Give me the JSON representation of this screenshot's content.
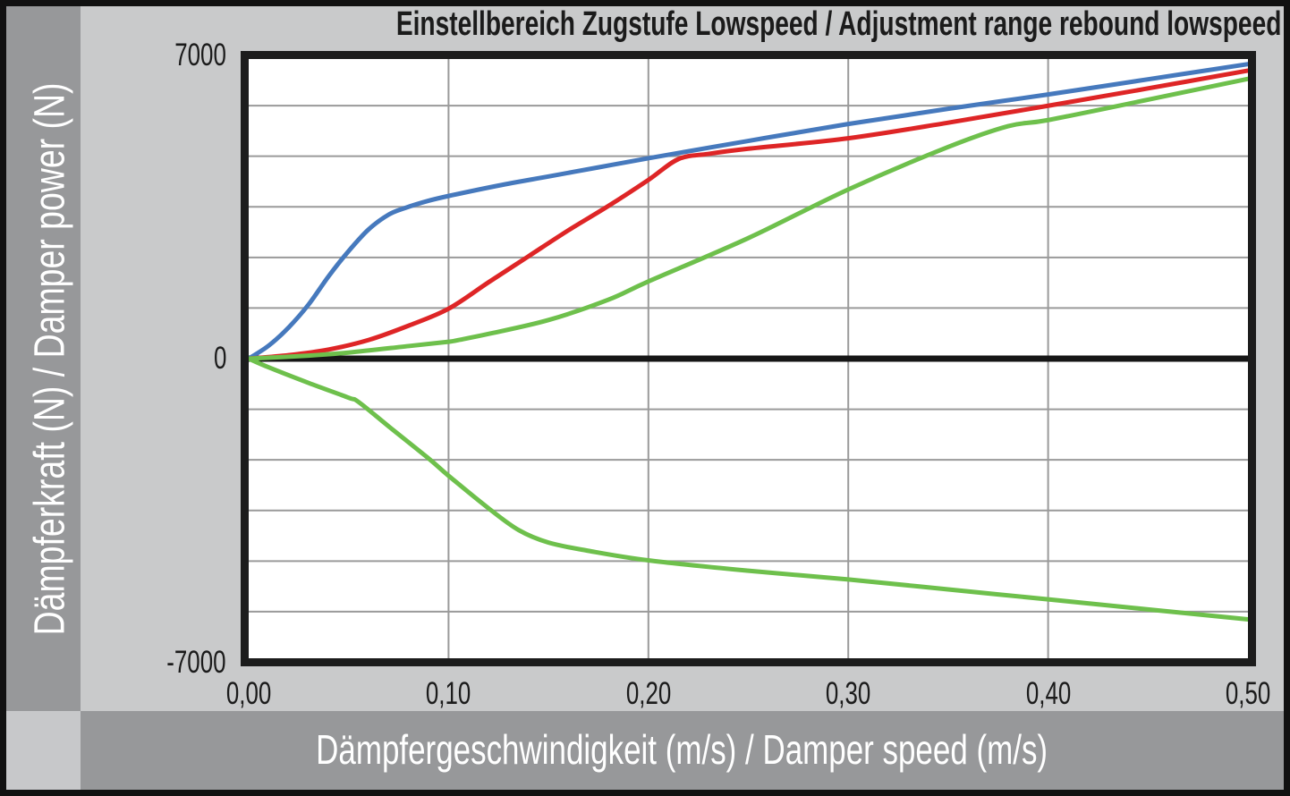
{
  "page": {
    "title": "Einstellbereich Zugstufe Lowspeed / Adjustment range rebound lowspeed",
    "x_axis_band_label": "Dämpfergeschwindigkeit (m/s) / Damper speed (m/s)",
    "y_axis_band_label": "Dämpferkraft (N) / Damper power (N)"
  },
  "colors": {
    "band_gray": "#97989a",
    "panel_gray": "#c9cacb",
    "corner_gray": "#c7c8ca",
    "grid_gray": "#9a9a9a",
    "frame_black": "#1c1c1c",
    "zero_line_black": "#161616",
    "series_blue": "#4679bd",
    "series_red": "#de2526",
    "series_green": "#6ec04c"
  },
  "chart_data": {
    "type": "line",
    "title": "Einstellbereich Zugstufe Lowspeed / Adjustment range rebound lowspeed",
    "xlabel": "Dämpfergeschwindigkeit (m/s) / Damper speed (m/s)",
    "ylabel": "Dämpferkraft (N) / Damper power (N)",
    "xlim": [
      0,
      0.5
    ],
    "ylim": [
      -7000,
      7000
    ],
    "grid": true,
    "legend": false,
    "x_tick_values": [
      0,
      0.1,
      0.2,
      0.3,
      0.4,
      0.5
    ],
    "x_tick_labels": [
      "0,00",
      "0,10",
      "0,20",
      "0,30",
      "0,40",
      "0,50"
    ],
    "y_tick_values": [
      7000,
      0,
      -7000
    ],
    "y_tick_labels": [
      "7000",
      "0",
      "-7000"
    ],
    "x_gridline_values": [
      0.1,
      0.2,
      0.3,
      0.4
    ],
    "y_gridlines_per_half": 6,
    "series": [
      {
        "name": "blue-curve-rebound-max",
        "color": "#4679bd",
        "points": [
          [
            0,
            0
          ],
          [
            0.01,
            300
          ],
          [
            0.02,
            720
          ],
          [
            0.03,
            1250
          ],
          [
            0.04,
            1900
          ],
          [
            0.05,
            2480
          ],
          [
            0.06,
            2980
          ],
          [
            0.07,
            3320
          ],
          [
            0.078,
            3470
          ],
          [
            0.09,
            3640
          ],
          [
            0.1,
            3750
          ],
          [
            0.125,
            3990
          ],
          [
            0.15,
            4200
          ],
          [
            0.175,
            4410
          ],
          [
            0.2,
            4620
          ],
          [
            0.25,
            5020
          ],
          [
            0.3,
            5410
          ],
          [
            0.35,
            5760
          ],
          [
            0.4,
            6090
          ],
          [
            0.45,
            6440
          ],
          [
            0.5,
            6790
          ]
        ]
      },
      {
        "name": "red-curve-rebound-mid",
        "color": "#de2526",
        "points": [
          [
            0,
            0
          ],
          [
            0.02,
            80
          ],
          [
            0.04,
            210
          ],
          [
            0.06,
            430
          ],
          [
            0.08,
            760
          ],
          [
            0.1,
            1150
          ],
          [
            0.12,
            1760
          ],
          [
            0.14,
            2360
          ],
          [
            0.16,
            2960
          ],
          [
            0.18,
            3520
          ],
          [
            0.2,
            4120
          ],
          [
            0.215,
            4600
          ],
          [
            0.23,
            4720
          ],
          [
            0.25,
            4840
          ],
          [
            0.3,
            5080
          ],
          [
            0.35,
            5440
          ],
          [
            0.4,
            5830
          ],
          [
            0.45,
            6230
          ],
          [
            0.5,
            6640
          ]
        ]
      },
      {
        "name": "green-curve-rebound-min",
        "color": "#6ec04c",
        "points": [
          [
            0,
            0
          ],
          [
            0.03,
            70
          ],
          [
            0.05,
            140
          ],
          [
            0.08,
            290
          ],
          [
            0.1,
            390
          ],
          [
            0.105,
            430
          ],
          [
            0.12,
            570
          ],
          [
            0.15,
            890
          ],
          [
            0.18,
            1360
          ],
          [
            0.2,
            1780
          ],
          [
            0.25,
            2780
          ],
          [
            0.3,
            3900
          ],
          [
            0.35,
            4880
          ],
          [
            0.38,
            5360
          ],
          [
            0.4,
            5500
          ],
          [
            0.45,
            5970
          ],
          [
            0.5,
            6450
          ]
        ]
      },
      {
        "name": "green-curve-negative-branch",
        "color": "#6ec04c",
        "points": [
          [
            0,
            0
          ],
          [
            0.01,
            -200
          ],
          [
            0.03,
            -560
          ],
          [
            0.05,
            -900
          ],
          [
            0.055,
            -1000
          ],
          [
            0.07,
            -1560
          ],
          [
            0.09,
            -2300
          ],
          [
            0.1,
            -2700
          ],
          [
            0.12,
            -3450
          ],
          [
            0.135,
            -3950
          ],
          [
            0.15,
            -4240
          ],
          [
            0.17,
            -4430
          ],
          [
            0.2,
            -4650
          ],
          [
            0.25,
            -4890
          ],
          [
            0.3,
            -5090
          ],
          [
            0.35,
            -5320
          ],
          [
            0.4,
            -5550
          ],
          [
            0.45,
            -5780
          ],
          [
            0.5,
            -6010
          ]
        ]
      }
    ]
  }
}
